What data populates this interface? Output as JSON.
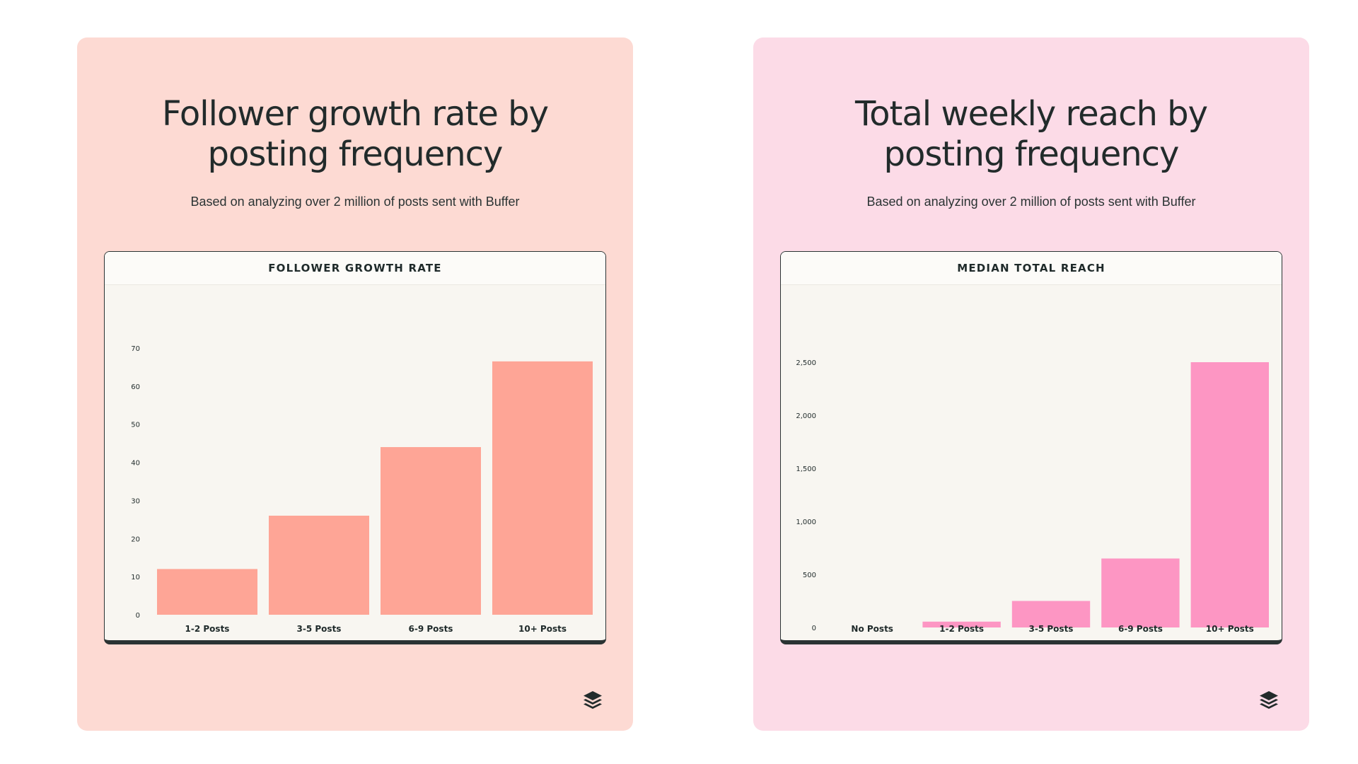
{
  "cards": [
    {
      "title_line1": "Follower growth rate by",
      "title_line2": "posting frequency",
      "subtitle": "Based on analyzing over 2 million of posts sent with Buffer",
      "panel_title": "FOLLOWER GROWTH RATE",
      "logo_icon": "buffer-logo-icon"
    },
    {
      "title_line1": "Total weekly reach by",
      "title_line2": "posting frequency",
      "subtitle": "Based on analyzing over 2 million of posts sent with Buffer",
      "panel_title": "MEDIAN TOTAL REACH",
      "logo_icon": "buffer-logo-icon"
    }
  ],
  "colors": {
    "card1_bg": "#fddad3",
    "card2_bg": "#fcdbe7",
    "bar1": "#fea596",
    "bar2": "#fd96c3",
    "text": "#1f2a2a"
  },
  "chart_data": [
    {
      "type": "bar",
      "title": "FOLLOWER GROWTH RATE",
      "categories": [
        "1-2 Posts",
        "3-5 Posts",
        "6-9 Posts",
        "10+ Posts"
      ],
      "values": [
        12,
        26,
        44,
        66.5
      ],
      "ylim": [
        0,
        70
      ],
      "yticks": [
        0,
        10,
        20,
        30,
        40,
        50,
        60,
        70
      ],
      "ytick_labels": [
        "0",
        "10",
        "20",
        "30",
        "40",
        "50",
        "60",
        "70"
      ],
      "grid": false,
      "color": "#fea596"
    },
    {
      "type": "bar",
      "title": "MEDIAN TOTAL REACH",
      "categories": [
        "No Posts",
        "1-2 Posts",
        "3-5 Posts",
        "6-9 Posts",
        "10+ Posts"
      ],
      "values": [
        0,
        55,
        250,
        650,
        2500
      ],
      "ylim": [
        0,
        2500
      ],
      "yticks": [
        0,
        500,
        1000,
        1500,
        2000,
        2500
      ],
      "ytick_labels": [
        "0",
        "500",
        "1,000",
        "1,500",
        "2,000",
        "2,500"
      ],
      "grid": false,
      "color": "#fd96c3"
    }
  ]
}
